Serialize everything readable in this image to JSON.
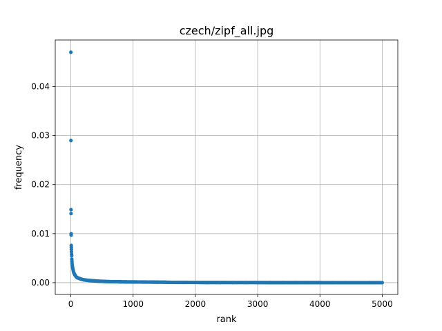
{
  "chart_data": {
    "type": "scatter",
    "title": "czech/zipf_all.jpg",
    "xlabel": "rank",
    "ylabel": "frequency",
    "xlim": [
      -250,
      5250
    ],
    "ylim": [
      -0.0024,
      0.0495
    ],
    "x_ticks": [
      0,
      1000,
      2000,
      3000,
      4000,
      5000
    ],
    "x_tick_labels": [
      "0",
      "1000",
      "2000",
      "3000",
      "4000",
      "5000"
    ],
    "y_ticks": [
      0.0,
      0.01,
      0.02,
      0.03,
      0.04
    ],
    "y_tick_labels": [
      "0.00",
      "0.01",
      "0.02",
      "0.03",
      "0.04"
    ],
    "grid": true,
    "legend": "none",
    "marker_color": "#1f77b4",
    "series": [
      {
        "x": [
          1,
          2,
          3,
          4,
          5,
          6,
          7,
          8,
          9,
          10,
          12,
          14,
          16,
          18,
          20,
          23,
          26,
          30,
          35,
          40,
          46,
          53,
          60,
          70,
          80,
          95,
          110,
          130,
          150,
          175,
          200,
          230,
          260,
          300,
          350,
          400,
          450,
          500,
          550,
          600,
          700,
          800,
          900,
          1000,
          1100,
          1200,
          1300,
          1400,
          1500,
          1600,
          1800,
          2000,
          2200,
          2400,
          2600,
          2800,
          3000,
          3200,
          3400,
          3600,
          3800,
          4000,
          4200,
          4400,
          4600,
          4800,
          5000
        ],
        "y": [
          0.047,
          0.029,
          0.0149,
          0.0141,
          0.01,
          0.0097,
          0.0076,
          0.0072,
          0.0068,
          0.0063,
          0.0058,
          0.0055,
          0.0048,
          0.0044,
          0.004,
          0.0036,
          0.0033,
          0.003,
          0.0027,
          0.0024,
          0.0021,
          0.0019,
          0.0017,
          0.0015,
          0.0013,
          0.0011,
          0.001,
          0.0009,
          0.0008,
          0.0007,
          0.0006,
          0.00055,
          0.0005,
          0.00045,
          0.0004,
          0.00035,
          0.0003,
          0.00028,
          0.00025,
          0.00022,
          0.0002,
          0.00018,
          0.00016,
          0.00015,
          0.00014,
          0.00013,
          0.00012,
          0.00011,
          0.0001,
          7e-05,
          6e-05,
          5e-05,
          4.5e-05,
          4e-05,
          3.7e-05,
          3.4e-05,
          3.1e-05,
          2.9e-05,
          2.7e-05,
          2.5e-05,
          2.3e-05,
          2.1e-05,
          2e-05,
          1.9e-05,
          1.8e-05,
          1.7e-05,
          1.6e-05
        ]
      }
    ]
  }
}
